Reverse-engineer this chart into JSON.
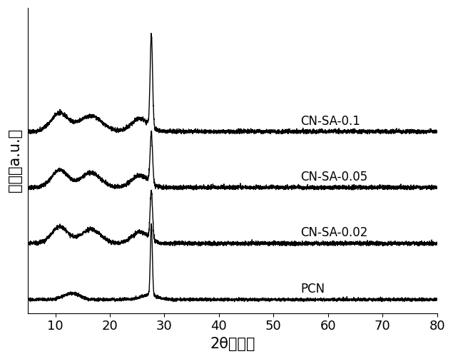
{
  "xlabel": "2θ（度）",
  "ylabel": "强度（a.u.）",
  "xlim": [
    5,
    80
  ],
  "ylim": [
    -0.05,
    1.15
  ],
  "labels": [
    "PCN",
    "CN-SA-0.02",
    "CN-SA-0.05",
    "CN-SA-0.1"
  ],
  "offsets": [
    0.0,
    0.22,
    0.44,
    0.66
  ],
  "background_color": "#ffffff",
  "line_color": "#000000",
  "xticks": [
    10,
    20,
    30,
    40,
    50,
    60,
    70,
    80
  ],
  "font_size_label": 15,
  "font_size_tick": 13,
  "font_size_annot": 12
}
